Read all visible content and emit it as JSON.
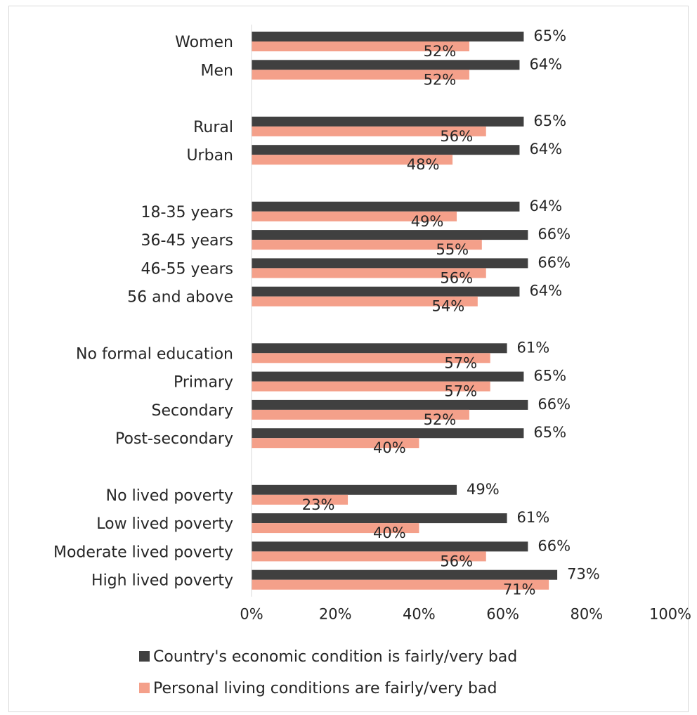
{
  "chart_data": {
    "type": "bar",
    "orientation": "horizontal",
    "categories": [
      "Women",
      "Men",
      "Rural",
      "Urban",
      "18-35 years",
      "36-45 years",
      "46-55 years",
      "56 and above",
      "No formal education",
      "Primary",
      "Secondary",
      "Post-secondary",
      "No lived poverty",
      "Low lived poverty",
      "Moderate lived poverty",
      "High lived poverty"
    ],
    "series": [
      {
        "name": "Country's economic condition is fairly/very bad",
        "color": "#404040",
        "values": [
          65,
          64,
          65,
          64,
          64,
          66,
          66,
          64,
          61,
          65,
          66,
          65,
          49,
          61,
          66,
          73
        ],
        "labels": [
          "65%",
          "64%",
          "65%",
          "64%",
          "64%",
          "66%",
          "66%",
          "64%",
          "61%",
          "65%",
          "66%",
          "65%",
          "49%",
          "61%",
          "66%",
          "73%"
        ]
      },
      {
        "name": "Personal living conditions are fairly/very bad",
        "color": "#f4a08a",
        "values": [
          52,
          52,
          56,
          48,
          49,
          55,
          56,
          54,
          57,
          57,
          52,
          40,
          23,
          40,
          56,
          71
        ],
        "labels": [
          "52%",
          "52%",
          "56%",
          "48%",
          "49%",
          "55%",
          "56%",
          "54%",
          "57%",
          "57%",
          "52%",
          "40%",
          "23%",
          "40%",
          "56%",
          "71%"
        ]
      }
    ],
    "xlim": [
      0,
      100
    ],
    "x_ticks": [
      "0%",
      "20%",
      "40%",
      "60%",
      "80%",
      "100%"
    ],
    "grid": false,
    "legend_position": "bottom"
  }
}
